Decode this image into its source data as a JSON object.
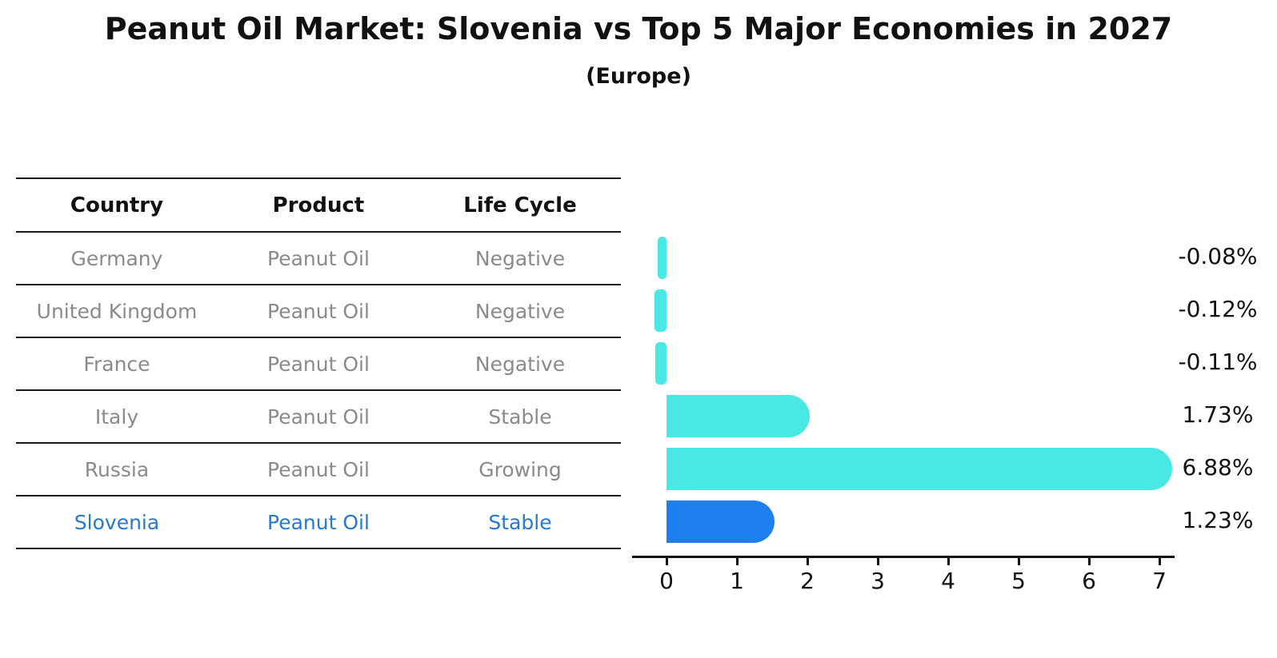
{
  "title": "Peanut Oil Market: Slovenia vs Top 5 Major Economies in 2027",
  "subtitle": "(Europe)",
  "table": {
    "headers": [
      "Country",
      "Product",
      "Life Cycle"
    ],
    "rows": [
      {
        "country": "Germany",
        "product": "Peanut Oil",
        "life_cycle": "Negative",
        "highlight": false
      },
      {
        "country": "United Kingdom",
        "product": "Peanut Oil",
        "life_cycle": "Negative",
        "highlight": false
      },
      {
        "country": "France",
        "product": "Peanut Oil",
        "life_cycle": "Negative",
        "highlight": false
      },
      {
        "country": "Italy",
        "product": "Peanut Oil",
        "life_cycle": "Stable",
        "highlight": false
      },
      {
        "country": "Russia",
        "product": "Peanut Oil",
        "life_cycle": "Growing",
        "highlight": false
      },
      {
        "country": "Slovenia",
        "product": "Peanut Oil",
        "life_cycle": "Stable",
        "highlight": true
      }
    ]
  },
  "chart_data": {
    "type": "bar",
    "orientation": "horizontal",
    "title": "Peanut Oil Market: Slovenia vs Top 5 Major Economies in 2027 (Europe)",
    "categories": [
      "Germany",
      "United Kingdom",
      "France",
      "Italy",
      "Russia",
      "Slovenia"
    ],
    "values": [
      -0.08,
      -0.12,
      -0.11,
      1.73,
      6.88,
      1.23
    ],
    "value_labels": [
      "-0.08%",
      "-0.12%",
      "-0.11%",
      "1.73%",
      "6.88%",
      "1.23%"
    ],
    "highlight_index": 5,
    "xlabel": "",
    "ylabel": "",
    "xticks": [
      0,
      1,
      2,
      3,
      4,
      5,
      6,
      7
    ],
    "xlim": [
      -0.6,
      7.3
    ],
    "grid": false,
    "legend": false,
    "bar_color": "#4ae8e4",
    "highlight_color": "#1e7ff0",
    "highlight_text_color": "#2878ce"
  }
}
